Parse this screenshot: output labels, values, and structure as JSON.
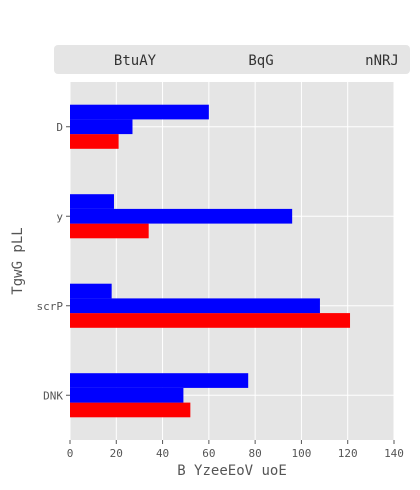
{
  "chart_data": {
    "type": "bar",
    "orientation": "horizontal",
    "categories": [
      "DNK",
      "scrP",
      "y",
      "D"
    ],
    "series": [
      {
        "name": "BtuAY",
        "color": "#ff0000",
        "values": [
          52,
          121,
          34,
          21
        ]
      },
      {
        "name": "BqG",
        "color": "#0000ff",
        "values": [
          49,
          108,
          96,
          27
        ]
      },
      {
        "name": "nNRJ",
        "color": "#0000ff",
        "values": [
          77,
          18,
          19,
          60
        ]
      }
    ],
    "xlabel": "B YzeeEoV uoE",
    "ylabel": "TgwG pLL",
    "xlim": [
      0,
      140
    ],
    "xticks": [
      0,
      20,
      40,
      60,
      80,
      100,
      120,
      140
    ],
    "grid": true,
    "legend_position": "top"
  }
}
